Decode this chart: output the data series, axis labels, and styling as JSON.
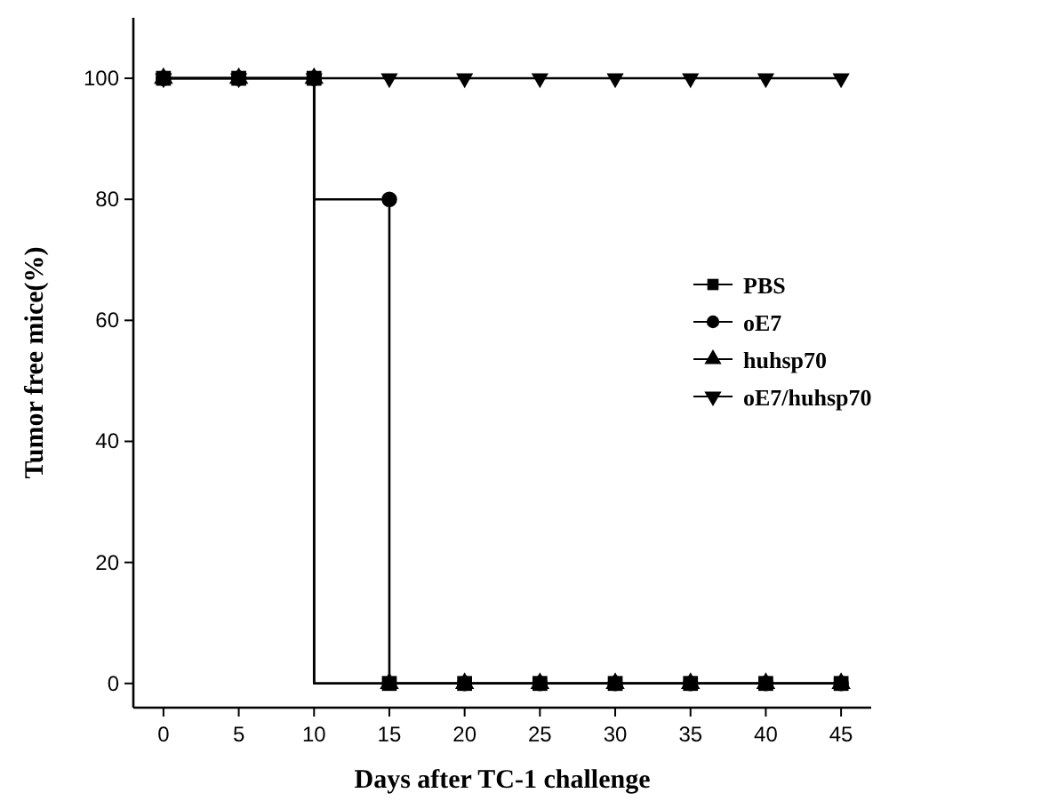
{
  "chart_data": {
    "type": "step",
    "xlabel": "Days after TC-1 challenge",
    "ylabel": "Tumor free mice(%)",
    "x": [
      0,
      5,
      10,
      15,
      20,
      25,
      30,
      35,
      40,
      45
    ],
    "xlim": [
      -2,
      47
    ],
    "xticks": [
      0,
      5,
      10,
      15,
      20,
      25,
      30,
      35,
      40,
      45
    ],
    "ylim": [
      -4,
      110
    ],
    "yticks": [
      0,
      20,
      40,
      60,
      80,
      100
    ],
    "grid": false,
    "legend": "right",
    "line_style": "solid",
    "series": [
      {
        "name": "PBS",
        "color": "#000000",
        "marker": "square",
        "values": [
          100,
          100,
          100,
          0,
          0,
          0,
          0,
          0,
          0,
          0
        ]
      },
      {
        "name": "oE7",
        "color": "#000000",
        "marker": "circle",
        "values": [
          100,
          100,
          100,
          80,
          0,
          0,
          0,
          0,
          0,
          0
        ]
      },
      {
        "name": "huhsp70",
        "color": "#000000",
        "marker": "triangle",
        "values": [
          100,
          100,
          100,
          0,
          0,
          0,
          0,
          0,
          0,
          0
        ]
      },
      {
        "name": "oE7/huhsp70",
        "color": "#000000",
        "marker": "triangle-down",
        "values": [
          100,
          100,
          100,
          100,
          100,
          100,
          100,
          100,
          100,
          100
        ]
      }
    ]
  }
}
